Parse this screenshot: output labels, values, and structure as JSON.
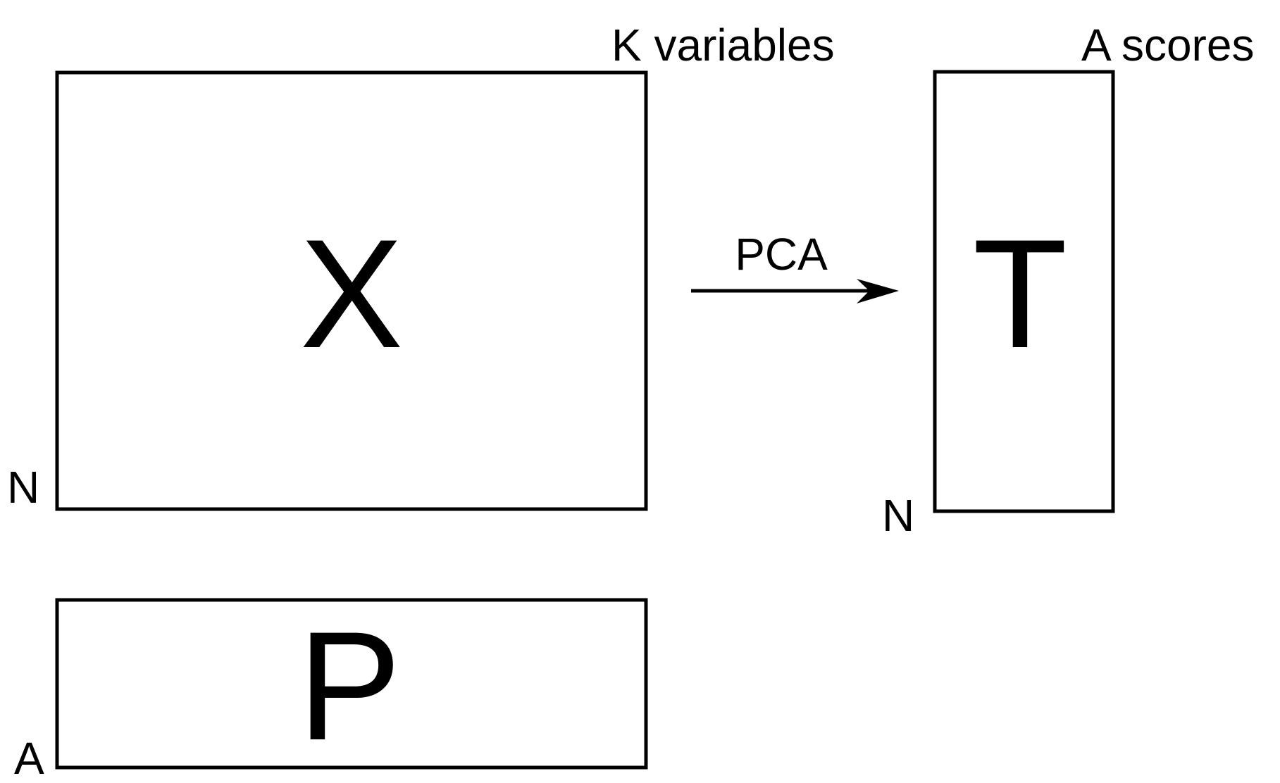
{
  "diagram": {
    "matrix_x": {
      "symbol": "X",
      "cols_label": "K variables",
      "rows_label": "N"
    },
    "matrix_t": {
      "symbol": "T",
      "cols_label": "A scores",
      "rows_label": "N"
    },
    "matrix_p": {
      "symbol": "P",
      "rows_label": "A"
    },
    "transform": {
      "label": "PCA"
    },
    "colors": {
      "stroke": "#000000",
      "background": "#ffffff"
    }
  }
}
